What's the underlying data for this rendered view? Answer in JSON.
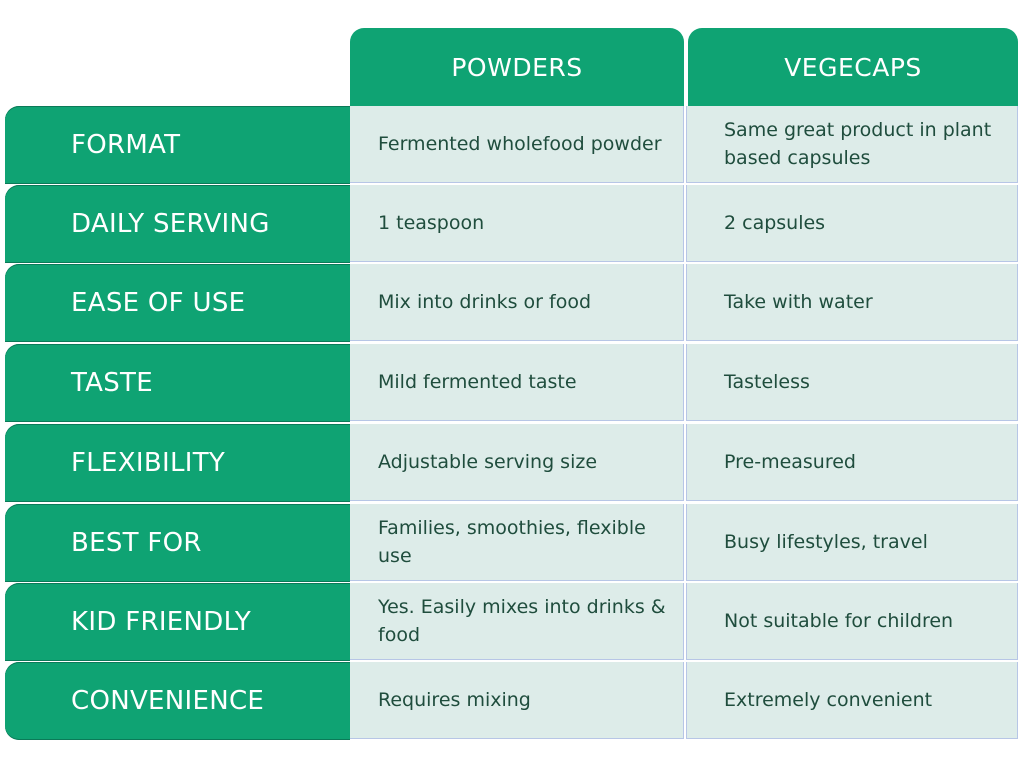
{
  "columns": [
    "POWDERS",
    "VEGECAPS"
  ],
  "rows": [
    {
      "label": "FORMAT",
      "powders": "Fermented wholefood powder",
      "vegecaps": "Same great product in plant based capsules"
    },
    {
      "label": "DAILY SERVING",
      "powders": "1 teaspoon",
      "vegecaps": "2 capsules"
    },
    {
      "label": "EASE OF USE",
      "powders": "Mix into drinks or food",
      "vegecaps": "Take with water"
    },
    {
      "label": "TASTE",
      "powders": "Mild fermented taste",
      "vegecaps": "Tasteless"
    },
    {
      "label": "FLEXIBILITY",
      "powders": "Adjustable serving size",
      "vegecaps": "Pre-measured"
    },
    {
      "label": "BEST FOR",
      "powders": "Families, smoothies, flexible use",
      "vegecaps": "Busy lifestyles, travel"
    },
    {
      "label": "KID FRIENDLY",
      "powders": "Yes. Easily mixes into drinks & food",
      "vegecaps": "Not suitable for children"
    },
    {
      "label": "CONVENIENCE",
      "powders": "Requires mixing",
      "vegecaps": "Extremely convenient"
    }
  ],
  "colors": {
    "accent": "#0fa373",
    "cell_bg": "#ddece9",
    "cell_text": "#1f4d3d",
    "grid": "#b7c6e6"
  }
}
